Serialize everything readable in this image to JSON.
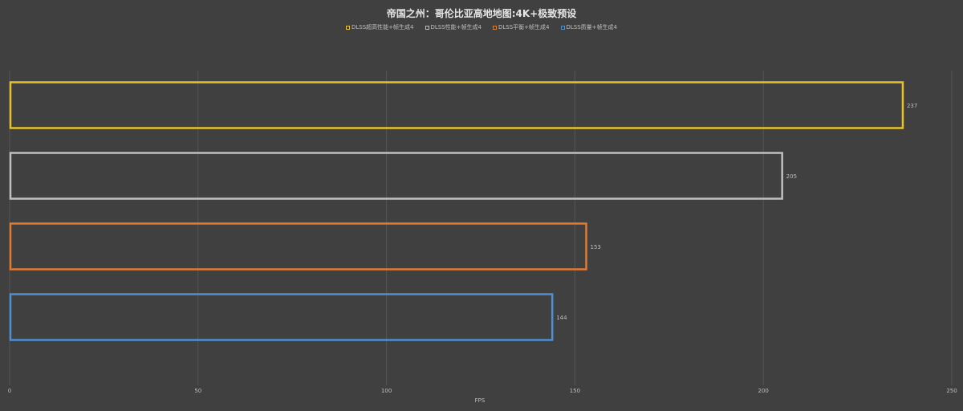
{
  "chart_data": {
    "type": "bar",
    "orientation": "horizontal",
    "title": "帝国之州：哥伦比亚高地地图:4K+极致预设",
    "xlabel": "FPS",
    "ylabel": "",
    "xlim": [
      0,
      250
    ],
    "xticks": [
      0,
      50,
      100,
      150,
      200,
      250
    ],
    "grid": true,
    "legend_position": "top",
    "series": [
      {
        "name": "DLSS超高性能+帧生成4",
        "values": [
          237
        ],
        "color": "#e6c229"
      },
      {
        "name": "DLSS性能+帧生成4",
        "values": [
          205
        ],
        "color": "#bfbfbf"
      },
      {
        "name": "DLSS平衡+帧生成4",
        "values": [
          153
        ],
        "color": "#e07b30"
      },
      {
        "name": "DLSS质量+帧生成4",
        "values": [
          144
        ],
        "color": "#4f8fd0"
      }
    ]
  }
}
